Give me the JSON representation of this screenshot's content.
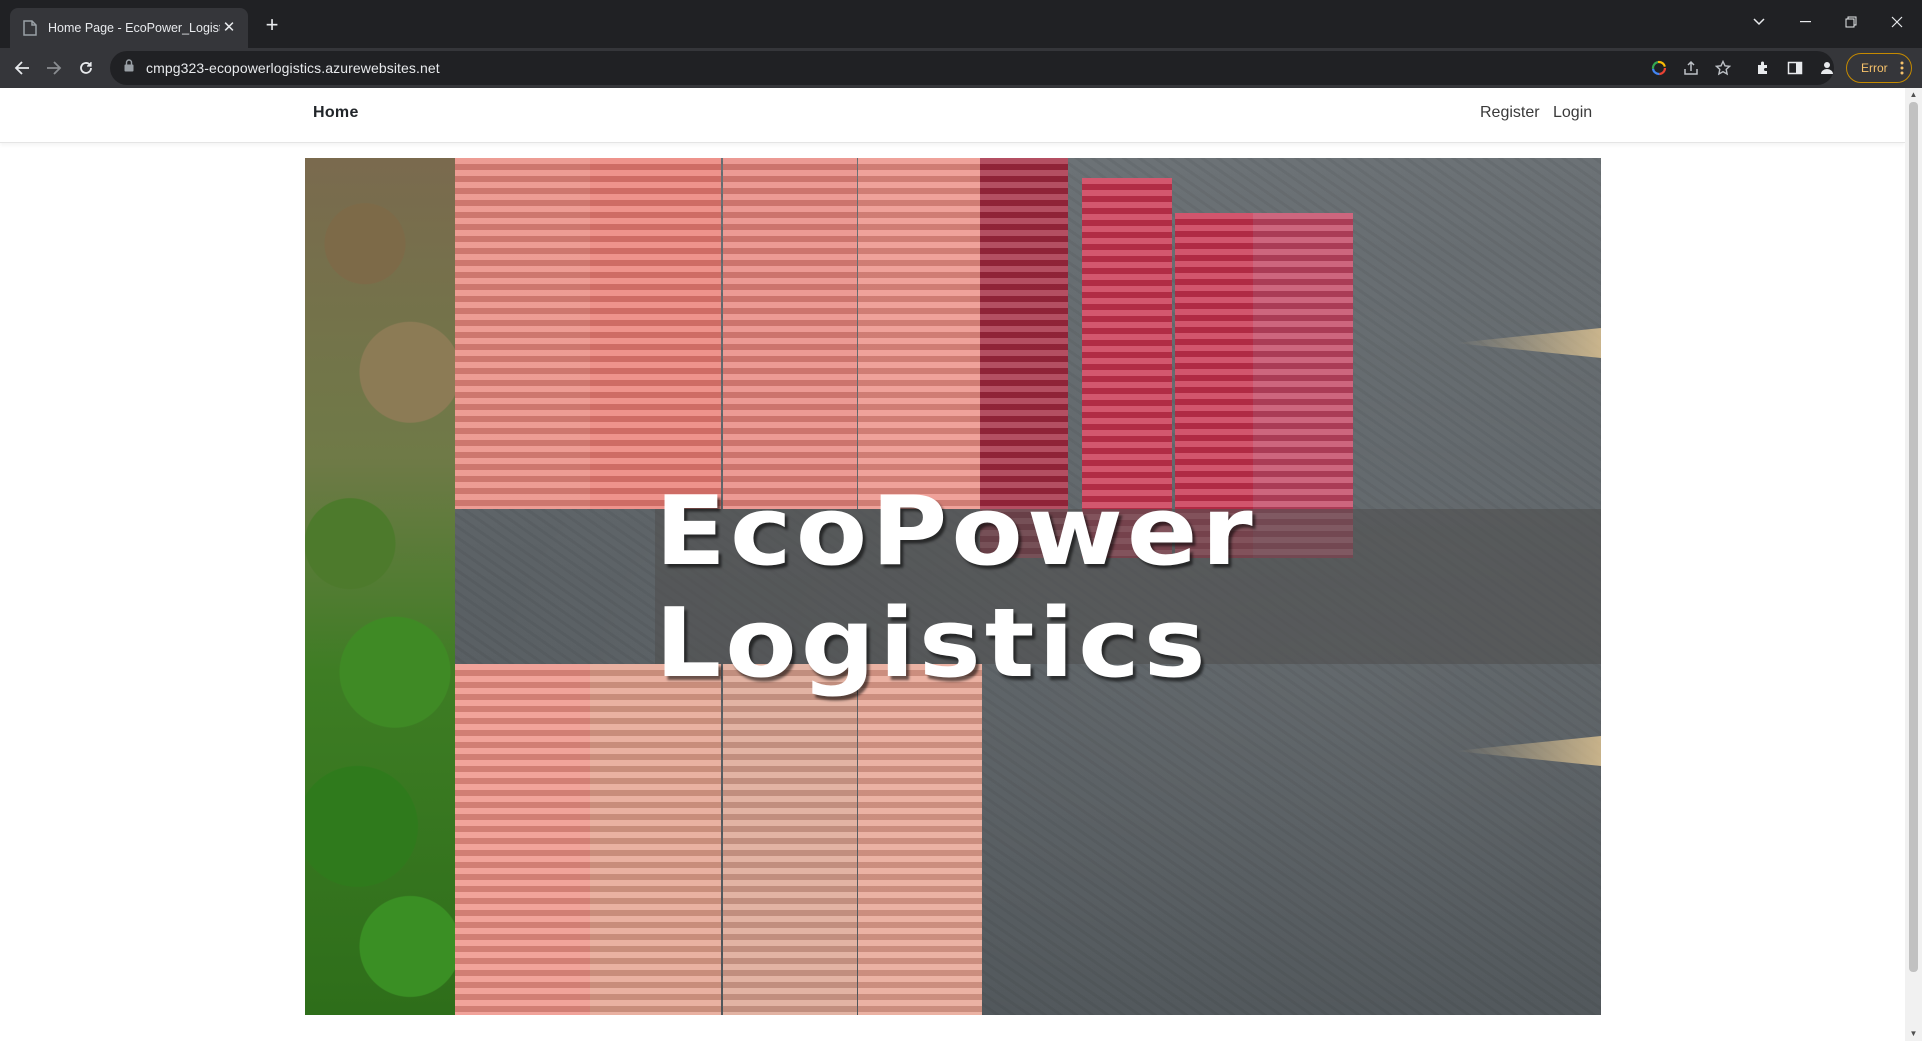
{
  "browser": {
    "tab_title": "Home Page - EcoPower_Logistic",
    "url": "cmpg323-ecopowerlogistics.azurewebsites.net",
    "profile_status": "Error",
    "new_tab_symbol": "+",
    "icons": [
      "page-favicon-icon",
      "close-icon",
      "back-arrow-icon",
      "forward-arrow-icon",
      "reload-icon",
      "lock-icon",
      "google-icon",
      "share-icon",
      "star-icon",
      "extensions-icon",
      "side-panel-icon",
      "profile-icon",
      "more-icon",
      "minimize-icon",
      "restore-icon",
      "window-close-icon",
      "tab-search-icon"
    ]
  },
  "navbar": {
    "brand": "Home",
    "links": [
      "Register",
      "Login"
    ]
  },
  "hero": {
    "title": "EcoPower Logistics"
  },
  "colors": {
    "chrome_dark": "#202124",
    "chrome_toolbar": "#35363a",
    "error_accent": "#f6c26b",
    "page_bg": "#ffffff",
    "container_pink": "#e8837a",
    "container_red": "#c8324e"
  }
}
